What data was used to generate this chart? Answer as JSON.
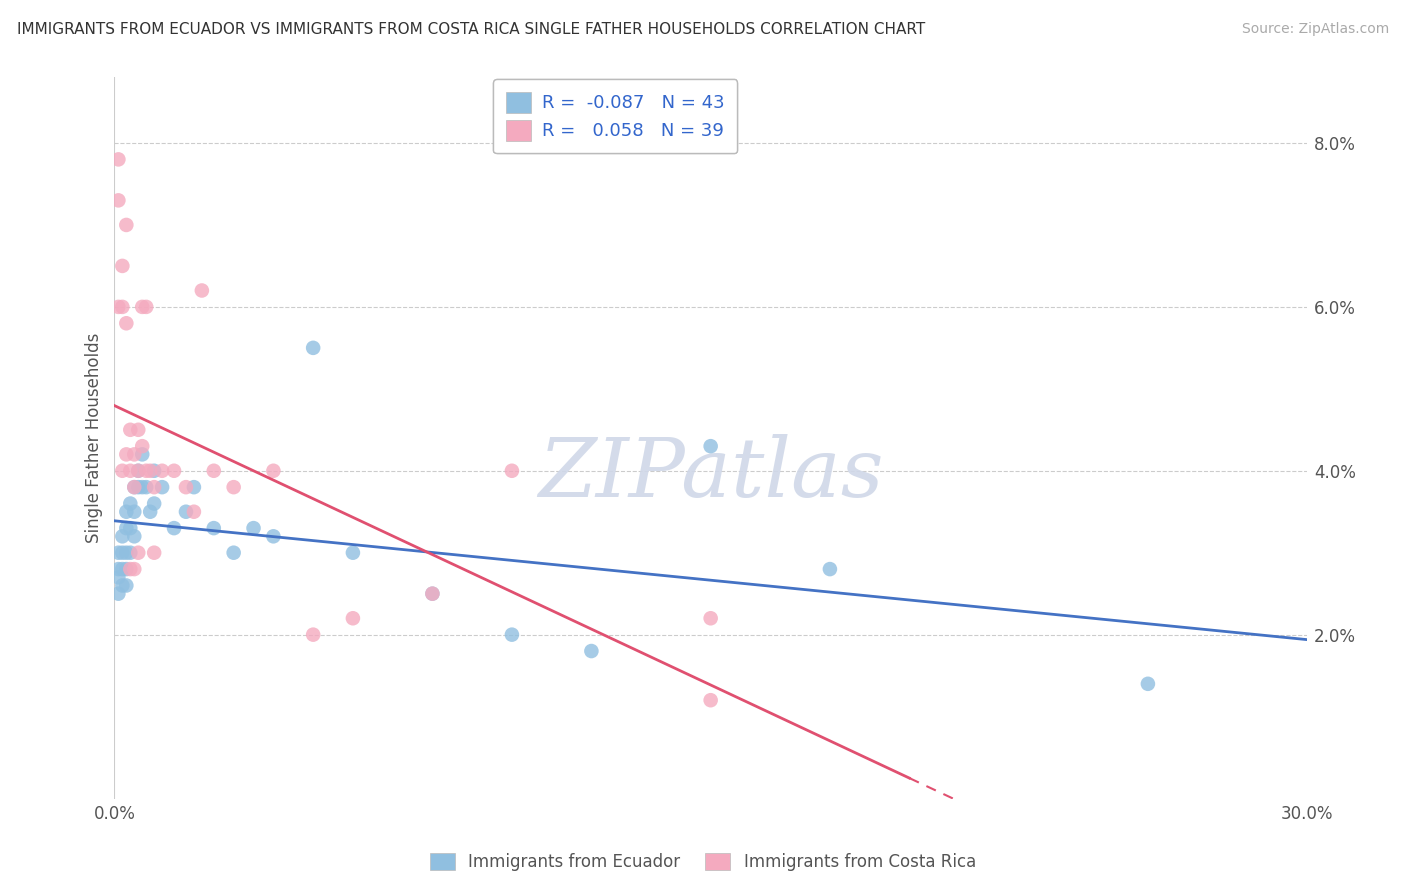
{
  "title": "IMMIGRANTS FROM ECUADOR VS IMMIGRANTS FROM COSTA RICA SINGLE FATHER HOUSEHOLDS CORRELATION CHART",
  "source": "Source: ZipAtlas.com",
  "ylabel": "Single Father Households",
  "legend_label1": "Immigrants from Ecuador",
  "legend_label2": "Immigrants from Costa Rica",
  "ecuador_R": -0.087,
  "ecuador_N": 43,
  "costarica_R": 0.058,
  "costarica_N": 39,
  "ecuador_color": "#90BFE0",
  "costarica_color": "#F4AABF",
  "ecuador_line_color": "#4472C4",
  "costarica_line_color": "#E05070",
  "watermark_text": "ZIPatlas",
  "xlim": [
    0.0,
    0.3
  ],
  "ylim": [
    0.0,
    0.088
  ],
  "y_ticks": [
    0.02,
    0.04,
    0.06,
    0.08
  ],
  "y_tick_labels": [
    "2.0%",
    "4.0%",
    "6.0%",
    "8.0%"
  ],
  "ecuador_x": [
    0.001,
    0.001,
    0.001,
    0.001,
    0.002,
    0.002,
    0.002,
    0.002,
    0.003,
    0.003,
    0.003,
    0.003,
    0.003,
    0.004,
    0.004,
    0.004,
    0.005,
    0.005,
    0.005,
    0.006,
    0.006,
    0.007,
    0.007,
    0.008,
    0.009,
    0.01,
    0.01,
    0.012,
    0.015,
    0.018,
    0.02,
    0.025,
    0.03,
    0.035,
    0.04,
    0.05,
    0.06,
    0.08,
    0.1,
    0.12,
    0.15,
    0.18,
    0.26
  ],
  "ecuador_y": [
    0.03,
    0.028,
    0.027,
    0.025,
    0.032,
    0.03,
    0.028,
    0.026,
    0.035,
    0.033,
    0.03,
    0.028,
    0.026,
    0.036,
    0.033,
    0.03,
    0.038,
    0.035,
    0.032,
    0.04,
    0.038,
    0.042,
    0.038,
    0.038,
    0.035,
    0.04,
    0.036,
    0.038,
    0.033,
    0.035,
    0.038,
    0.033,
    0.03,
    0.033,
    0.032,
    0.055,
    0.03,
    0.025,
    0.02,
    0.018,
    0.043,
    0.028,
    0.014
  ],
  "costarica_x": [
    0.001,
    0.001,
    0.001,
    0.002,
    0.002,
    0.002,
    0.003,
    0.003,
    0.003,
    0.004,
    0.004,
    0.004,
    0.005,
    0.005,
    0.005,
    0.006,
    0.006,
    0.006,
    0.007,
    0.007,
    0.008,
    0.008,
    0.009,
    0.01,
    0.01,
    0.012,
    0.015,
    0.018,
    0.02,
    0.022,
    0.025,
    0.03,
    0.04,
    0.05,
    0.06,
    0.08,
    0.1,
    0.15,
    0.15
  ],
  "costarica_y": [
    0.078,
    0.073,
    0.06,
    0.065,
    0.06,
    0.04,
    0.07,
    0.058,
    0.042,
    0.045,
    0.04,
    0.028,
    0.042,
    0.038,
    0.028,
    0.045,
    0.04,
    0.03,
    0.06,
    0.043,
    0.06,
    0.04,
    0.04,
    0.038,
    0.03,
    0.04,
    0.04,
    0.038,
    0.035,
    0.062,
    0.04,
    0.038,
    0.04,
    0.02,
    0.022,
    0.025,
    0.04,
    0.022,
    0.012
  ]
}
